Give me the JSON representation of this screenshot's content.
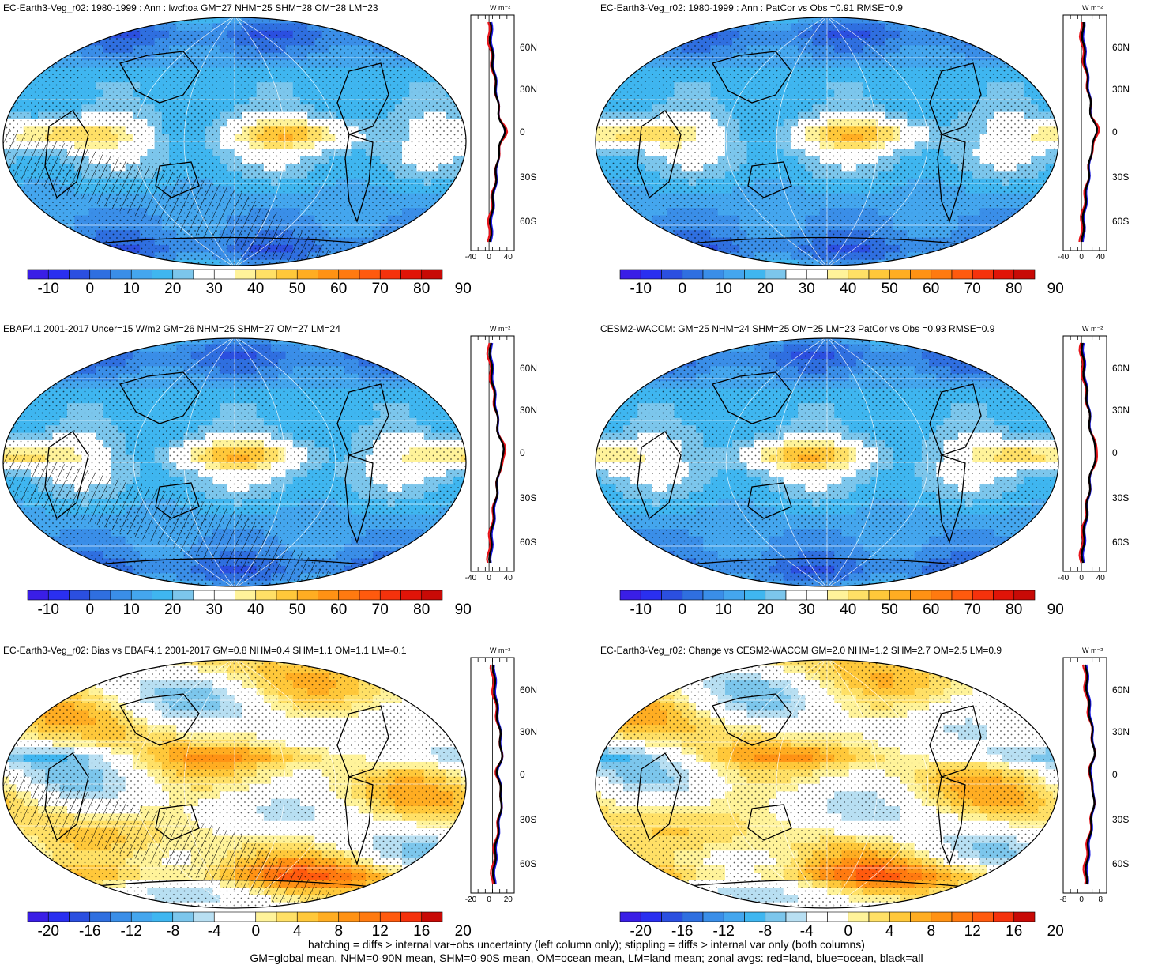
{
  "panels": [
    {
      "title": "EC-Earth3-Veg_r02: 1980-1999 : Ann : lwcftoa GM=27 NHM=25 SHM=28 OM=28 LM=23",
      "scheme": "abs",
      "hatch": true,
      "colorbar_labels": [
        "-10",
        "0",
        "10",
        "20",
        "30",
        "40",
        "50",
        "60",
        "70",
        "80",
        "90"
      ],
      "zonal_xticks": [
        "-40",
        "0",
        "40"
      ],
      "zonal_unit": "W m⁻²",
      "zonal_lat_labels": [
        "60N",
        "30N",
        "0",
        "30S",
        "60S"
      ]
    },
    {
      "title": "EC-Earth3-Veg_r02: 1980-1999 : Ann : PatCor vs Obs =0.91 RMSE=0.9",
      "scheme": "abs",
      "hatch": false,
      "colorbar_labels": [
        "-10",
        "0",
        "10",
        "20",
        "30",
        "40",
        "50",
        "60",
        "70",
        "80",
        "90"
      ],
      "zonal_xticks": [
        "-40",
        "0",
        "40"
      ],
      "zonal_unit": "W m⁻²",
      "zonal_lat_labels": [
        "60N",
        "30N",
        "0",
        "30S",
        "60S"
      ]
    },
    {
      "title": "EBAF4.1 2001-2017 Uncer=15 W/m2 GM=26 NHM=25 SHM=27 OM=27 LM=24",
      "scheme": "abs",
      "hatch": true,
      "colorbar_labels": [
        "-10",
        "0",
        "10",
        "20",
        "30",
        "40",
        "50",
        "60",
        "70",
        "80",
        "90"
      ],
      "zonal_xticks": [
        "-40",
        "0",
        "40"
      ],
      "zonal_unit": "W m⁻²",
      "zonal_lat_labels": [
        "60N",
        "30N",
        "0",
        "30S",
        "60S"
      ]
    },
    {
      "title": "CESM2-WACCM: GM=25 NHM=24 SHM=25 OM=25 LM=23 PatCor vs Obs =0.93 RMSE=0.9",
      "scheme": "abs",
      "hatch": false,
      "colorbar_labels": [
        "-10",
        "0",
        "10",
        "20",
        "30",
        "40",
        "50",
        "60",
        "70",
        "80",
        "90"
      ],
      "zonal_xticks": [
        "-40",
        "0",
        "40"
      ],
      "zonal_unit": "W m⁻²",
      "zonal_lat_labels": [
        "60N",
        "30N",
        "0",
        "30S",
        "60S"
      ]
    },
    {
      "title": "EC-Earth3-Veg_r02: Bias vs EBAF4.1 2001-2017 GM=0.8 NHM=0.4 SHM=1.1 OM=1.1 LM=-0.1",
      "scheme": "diff",
      "hatch": true,
      "colorbar_labels": [
        "-20",
        "-16",
        "-12",
        "-8",
        "-4",
        "0",
        "4",
        "8",
        "12",
        "16",
        "20"
      ],
      "zonal_xticks": [
        "-20",
        "0",
        "20"
      ],
      "zonal_unit": "W m⁻²",
      "zonal_lat_labels": [
        "60N",
        "30N",
        "0",
        "30S",
        "60S"
      ]
    },
    {
      "title": "EC-Earth3-Veg_r02: Change vs CESM2-WACCM GM=2.0 NHM=1.2 SHM=2.7 OM=2.5 LM=0.9",
      "scheme": "diff",
      "hatch": false,
      "colorbar_labels": [
        "-20",
        "-16",
        "-12",
        "-8",
        "-4",
        "0",
        "4",
        "8",
        "12",
        "16",
        "20"
      ],
      "zonal_xticks": [
        "-8",
        "0",
        "8"
      ],
      "zonal_unit": "W m⁻²",
      "zonal_lat_labels": [
        "60N",
        "30N",
        "0",
        "30S",
        "60S"
      ]
    }
  ],
  "palettes": {
    "abs": [
      "#3a1ee6",
      "#2a2ff0",
      "#2b4fe0",
      "#2f6fe0",
      "#3a8ee8",
      "#44a6ee",
      "#3fb6f0",
      "#7cc6ec",
      "#ffffff",
      "#ffffff",
      "#fff39a",
      "#ffe066",
      "#ffc83a",
      "#ffad22",
      "#ff9214",
      "#ff7a10",
      "#ff5a0e",
      "#f5320c",
      "#e01408",
      "#c80a06"
    ],
    "diff": [
      "#3a1ee6",
      "#2a2ff0",
      "#2b4fe0",
      "#2f6fe0",
      "#3a8ee8",
      "#44a6ee",
      "#3fb6f0",
      "#7cc6ec",
      "#b8dff2",
      "#ffffff",
      "#ffffff",
      "#fff39a",
      "#ffe066",
      "#ffc83a",
      "#ffad22",
      "#ff9214",
      "#ff7a10",
      "#ff5a0e",
      "#f5320c",
      "#c80a06"
    ]
  },
  "footer": {
    "line1": "hatching = diffs > internal var+obs uncertainty (left column only); stippling = diffs > internal var only (both columns)",
    "line2": "GM=global mean, NHM=0-90N mean, SHM=0-90S mean, OM=ocean mean, LM=land mean; zonal avgs: red=land, blue=ocean, black=all"
  },
  "zonal_legend_colors": {
    "land": "#e8141a",
    "ocean": "#1a1ae6",
    "all": "#000000"
  }
}
